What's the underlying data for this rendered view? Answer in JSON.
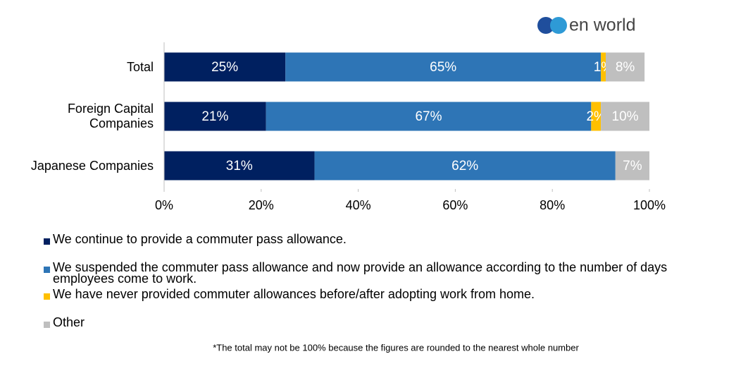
{
  "logo": "en world",
  "chart_data": {
    "type": "stacked-bar-horizontal",
    "categories": [
      "Total",
      "Foreign Capital Companies",
      "Japanese Companies"
    ],
    "series": [
      {
        "name": "We continue to provide a commuter pass allowance.",
        "color": "#002060",
        "values": [
          25,
          21,
          31
        ],
        "value_labels": [
          "25%",
          "21%",
          "31%"
        ]
      },
      {
        "name": "We suspended the commuter pass allowance and now provide an allowance according to the number of days employees come to work.",
        "color": "#2e75b6",
        "values": [
          65,
          67,
          62
        ],
        "value_labels": [
          "65%",
          "67%",
          "62%"
        ]
      },
      {
        "name": "We have never provided commuter allowances before/after adopting work from home.",
        "color": "#ffc000",
        "values": [
          1,
          2,
          0
        ],
        "value_labels": [
          "1%",
          "2%",
          null
        ]
      },
      {
        "name": "Other",
        "color": "#bfbfbf",
        "values": [
          8,
          10,
          7
        ],
        "value_labels": [
          "8%",
          "10%",
          "7%"
        ]
      }
    ],
    "xlim": [
      0,
      100
    ],
    "xticks": [
      {
        "value": 0,
        "label": "0%"
      },
      {
        "value": 20,
        "label": "20%"
      },
      {
        "value": 40,
        "label": "40%"
      },
      {
        "value": 60,
        "label": "60%"
      },
      {
        "value": 80,
        "label": "80%"
      },
      {
        "value": 100,
        "label": "100%"
      }
    ],
    "footnote": "*The total may not be 100% because the figures are rounded to the nearest whole number"
  }
}
